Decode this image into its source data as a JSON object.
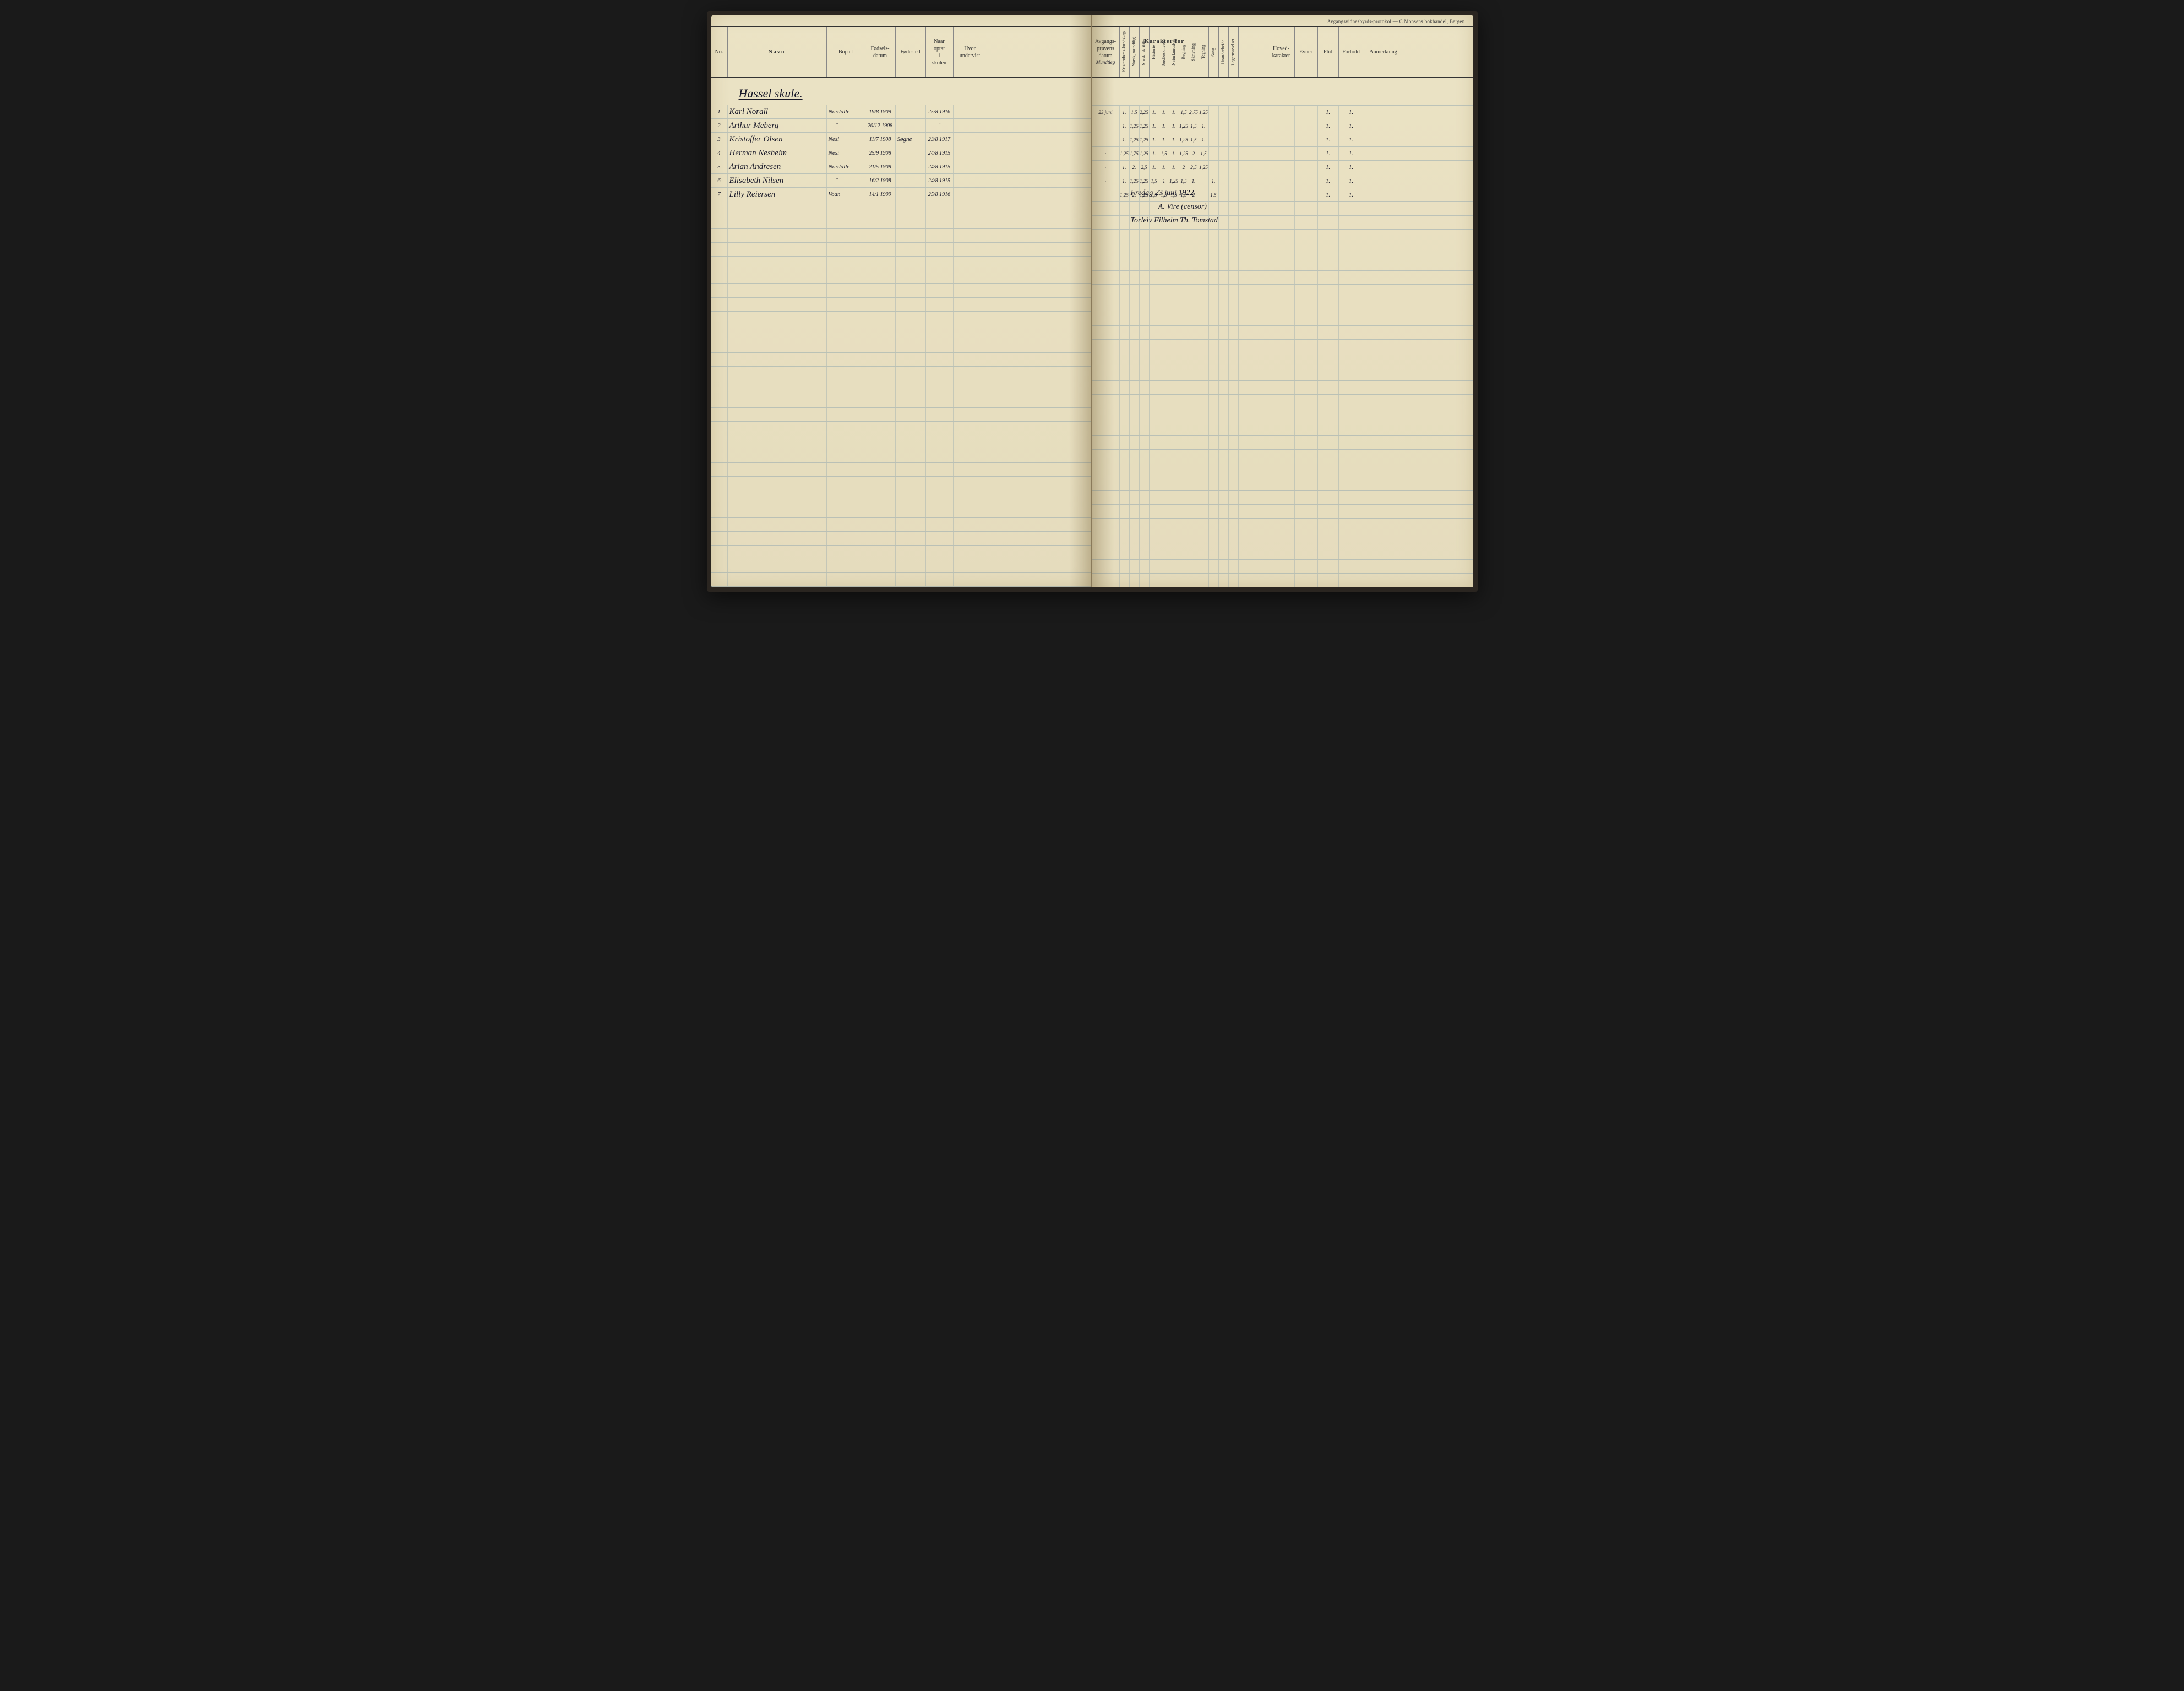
{
  "publisher": "Avgangsvidnesbyrds-protokol — C Monsens bokhandel, Bergen",
  "karakter_title": "Karakter for",
  "headers_left": {
    "no": "No.",
    "navn": "Navn",
    "bopael": "Bopæl",
    "fodsel": "Fødsels-\ndatum",
    "fodested": "Fødested",
    "optat": "Naar\noptat\ni\nskolen",
    "undervist": "Hvor\nundervist"
  },
  "headers_right": {
    "proven": "Avgangs-\nprøvens\ndatum",
    "proven_note": "Mundtleg",
    "grades": [
      "Kristendoms-kundskap",
      "Norsk, mundtlig",
      "Norsk, skriftlig",
      "Historie",
      "Jordbeskrivelse",
      "Naturkundskap",
      "Regning",
      "Skrivning",
      "Tegning",
      "Sang",
      "Haandarbeide",
      "Legemsøvelser"
    ],
    "hoved": "Hoved-\nkarakter",
    "evner": "Evner",
    "flid": "Flid",
    "forhold": "Forhold",
    "anmerk": "Anmerkning"
  },
  "school_title": "Hassel skule.",
  "students": [
    {
      "no": "1",
      "navn": "Karl Norall",
      "bopael": "Nordalle",
      "fodsel": "19/8 1909",
      "fodested": "",
      "optat": "25/8 1916",
      "undervist": "",
      "proven": "23 juni",
      "grades": [
        "1.",
        "1,5",
        "2,25",
        "1.",
        "1.",
        "1.",
        "1,5",
        "2,75",
        "1,25",
        "",
        "",
        ""
      ],
      "flid": "1.",
      "forhold": "1."
    },
    {
      "no": "2",
      "navn": "Arthur Meberg",
      "bopael": "— \" —",
      "fodsel": "20/12 1908",
      "fodested": "",
      "optat": "— \" —",
      "undervist": "",
      "proven": "",
      "grades": [
        "1.",
        "1,25",
        "1,25",
        "1.",
        "1.",
        "1.",
        "1,25",
        "1,5",
        "1.",
        "",
        "",
        ""
      ],
      "flid": "1.",
      "forhold": "1."
    },
    {
      "no": "3",
      "navn": "Kristoffer Olsen",
      "bopael": "Nesi",
      "fodsel": "11/7 1908",
      "fodested": "Søgne",
      "optat": "23/8 1917",
      "undervist": "",
      "proven": "",
      "grades": [
        "1.",
        "1,25",
        "1,25",
        "1.",
        "1.",
        "1.",
        "1,25",
        "1,5",
        "1.",
        "",
        "",
        ""
      ],
      "flid": "1.",
      "forhold": "1."
    },
    {
      "no": "4",
      "navn": "Herman Nesheim",
      "bopael": "Nesi",
      "fodsel": "25/9 1908",
      "fodested": "",
      "optat": "24/8 1915",
      "undervist": "",
      "proven": "·",
      "grades": [
        "1,25",
        "1,75",
        "1,25",
        "1.",
        "1,5",
        "1.",
        "1,25",
        "2",
        "1,5",
        "",
        "",
        ""
      ],
      "flid": "1.",
      "forhold": "1."
    },
    {
      "no": "5",
      "navn": "Arian Andresen",
      "bopael": "Nordalle",
      "fodsel": "21/5 1908",
      "fodested": "",
      "optat": "24/8 1915",
      "undervist": "",
      "proven": "·",
      "grades": [
        "1.",
        "2.",
        "2,5",
        "1.",
        "1.",
        "1.",
        "2",
        "2,5",
        "1,25",
        "",
        "",
        ""
      ],
      "flid": "1.",
      "forhold": "1."
    },
    {
      "no": "6",
      "navn": "Elisabeth Nilsen",
      "bopael": "— \" —",
      "fodsel": "16/2 1908",
      "fodested": "",
      "optat": "24/8 1915",
      "undervist": "",
      "proven": "·",
      "grades": [
        "1.",
        "1,25",
        "1,25",
        "1,5",
        "1",
        "1,25",
        "1,5",
        "1.",
        "",
        "1.",
        "",
        ""
      ],
      "flid": "1.",
      "forhold": "1."
    },
    {
      "no": "7",
      "navn": "Lilly Reiersen",
      "bopael": "Voan",
      "fodsel": "14/1 1909",
      "fodested": "",
      "optat": "25/8 1916",
      "undervist": "",
      "proven": "",
      "grades": [
        "1,25",
        "2.",
        "1,25",
        "1,5",
        "1,5",
        "1,5",
        "1,5",
        "2",
        "",
        "1,5",
        "",
        ""
      ],
      "flid": "1.",
      "forhold": "1."
    }
  ],
  "signature": {
    "line1": "Fredag 23 juni 1922",
    "line2": "A. Vire (censor)",
    "line3": "Torleiv Filheim  Th. Tomstad"
  },
  "empty_rows": 28,
  "colors": {
    "paper": "#e8dfc0",
    "ink": "#1a1a2a",
    "rule_line": "rgba(120,150,170,0.4)",
    "border": "#333"
  }
}
